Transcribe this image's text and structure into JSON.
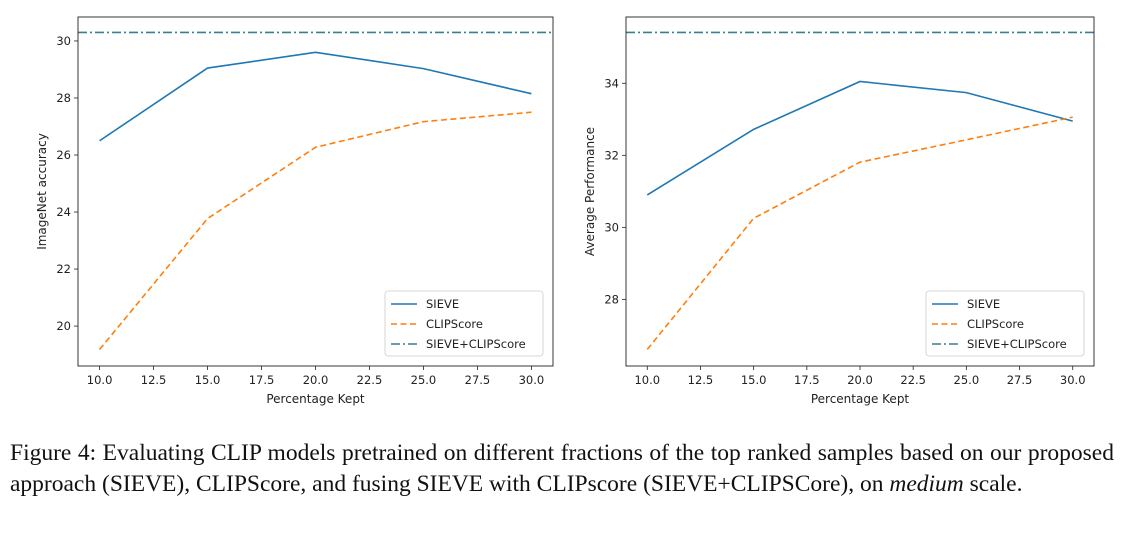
{
  "chart_data": [
    {
      "type": "line",
      "xlabel": "Percentage Kept",
      "ylabel": "ImageNet accuracy",
      "xlim": [
        9.0,
        31.0
      ],
      "ylim": [
        18.6,
        30.84
      ],
      "xticks": [
        "10.0",
        "12.5",
        "15.0",
        "17.5",
        "20.0",
        "22.5",
        "25.0",
        "27.5",
        "30.0"
      ],
      "yticks": [
        "20",
        "22",
        "24",
        "26",
        "28",
        "30"
      ],
      "x": [
        10,
        15,
        20,
        25,
        30
      ],
      "series": [
        {
          "name": "SIEVE",
          "style": "solid",
          "color": "#1f77b4",
          "values": [
            26.5,
            29.05,
            29.6,
            29.03,
            28.15
          ]
        },
        {
          "name": "CLIPScore",
          "style": "dashed",
          "color": "#ff7f0e",
          "values": [
            19.18,
            23.77,
            26.27,
            27.17,
            27.5
          ]
        },
        {
          "name": "SIEVE+CLIPScore",
          "style": "dashdot",
          "color": "#3a7f91",
          "hline": 30.3
        }
      ],
      "legend": "bottom-right",
      "grid": false
    },
    {
      "type": "line",
      "xlabel": "Percentage Kept",
      "ylabel": "Average Performance",
      "xlim": [
        9.0,
        31.0
      ],
      "ylim": [
        26.15,
        35.84
      ],
      "xticks": [
        "10.0",
        "12.5",
        "15.0",
        "17.5",
        "20.0",
        "22.5",
        "25.0",
        "27.5",
        "30.0"
      ],
      "yticks": [
        "28",
        "30",
        "32",
        "34"
      ],
      "x": [
        10,
        15,
        20,
        25,
        30
      ],
      "series": [
        {
          "name": "SIEVE",
          "style": "solid",
          "color": "#1f77b4",
          "values": [
            30.9,
            32.72,
            34.05,
            33.74,
            32.95
          ]
        },
        {
          "name": "CLIPScore",
          "style": "dashed",
          "color": "#ff7f0e",
          "values": [
            26.61,
            30.25,
            31.81,
            32.43,
            33.06
          ]
        },
        {
          "name": "SIEVE+CLIPScore",
          "style": "dashdot",
          "color": "#3a7f91",
          "hline": 35.41
        }
      ],
      "legend": "bottom-right",
      "grid": false
    }
  ],
  "caption": {
    "prefix": "Figure 4:  Evaluating CLIP models pretrained on different fractions of the top ranked samples based on our proposed approach (SIEVE), CLIPScore, and fusing SIEVE with CLIPscore (SIEVE+CLIPSCore), on ",
    "emph": "medium",
    "suffix": " scale."
  }
}
